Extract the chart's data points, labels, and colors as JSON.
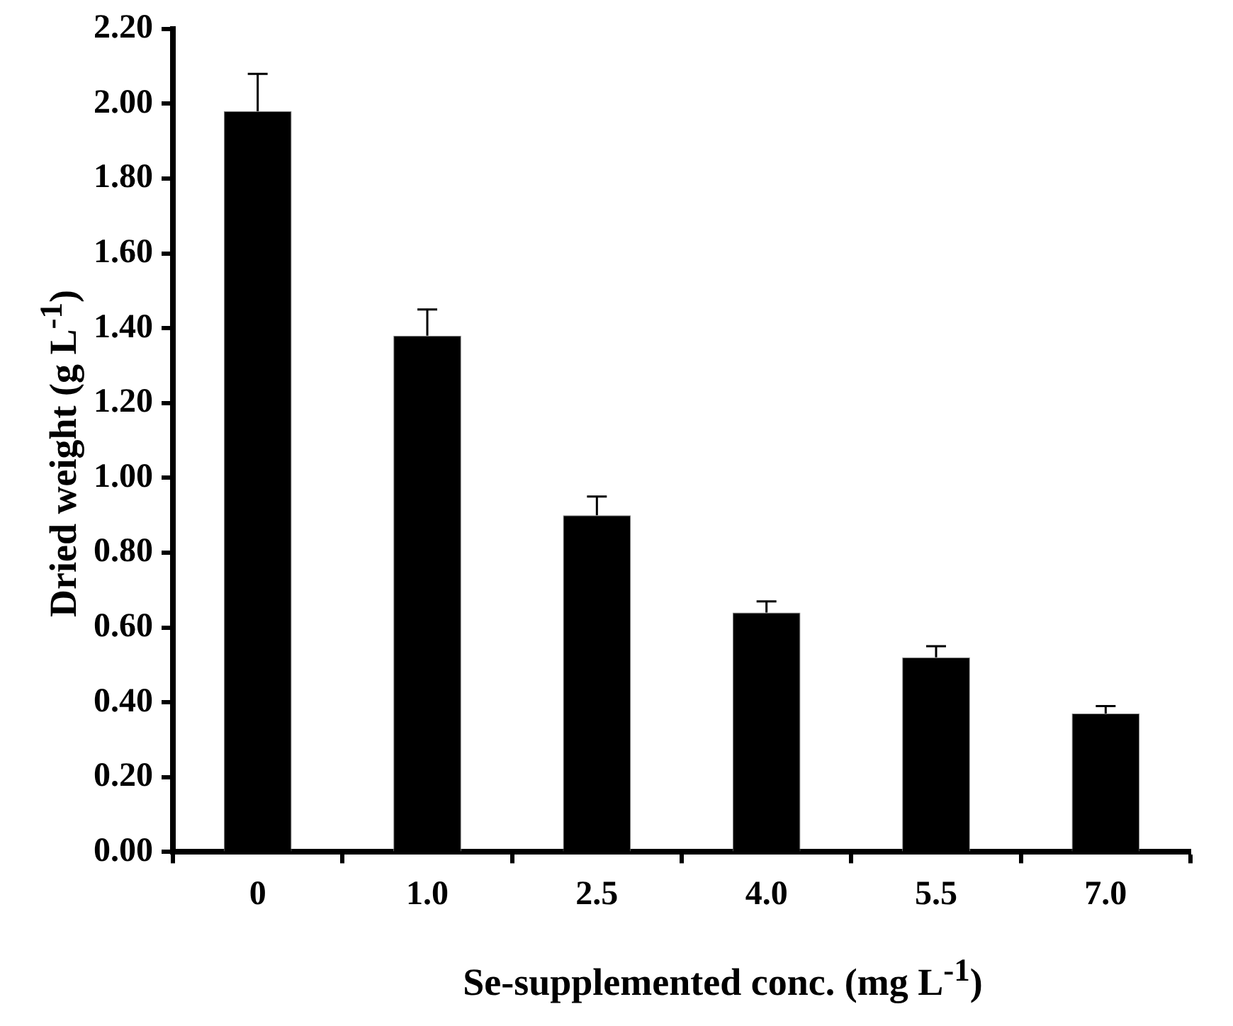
{
  "chart_data": {
    "type": "bar",
    "xlabel": "Se-supplemented conc. (mg L$^{-1}$)",
    "ylabel": "Dried weight (g L$^{-1}$)",
    "categories": [
      "0",
      "1.0",
      "2.5",
      "4.0",
      "5.5",
      "7.0"
    ],
    "values": [
      1.98,
      1.38,
      0.9,
      0.64,
      0.52,
      0.37
    ],
    "errors": [
      [
        1.98,
        2.08
      ],
      [
        1.38,
        1.45
      ],
      [
        0.9,
        0.95
      ],
      [
        0.64,
        0.67
      ],
      [
        0.52,
        0.55
      ],
      [
        0.37,
        0.39
      ]
    ],
    "color": "#000000",
    "ylim": [
      0,
      2.2
    ],
    "yticks": [
      {
        "value": 0,
        "label": "0.00"
      },
      {
        "value": 0.2,
        "label": "0.20"
      },
      {
        "value": 0.4,
        "label": "0.40"
      },
      {
        "value": 0.6,
        "label": "0.60"
      },
      {
        "value": 0.8,
        "label": "0.80"
      },
      {
        "value": 1,
        "label": "1.00"
      },
      {
        "value": 1.2,
        "label": "1.20"
      },
      {
        "value": 1.4,
        "label": "1.40"
      },
      {
        "value": 1.6,
        "label": "1.60"
      },
      {
        "value": 1.8,
        "label": "1.80"
      },
      {
        "value": 2,
        "label": "2.00"
      },
      {
        "value": 2.2,
        "label": "2.20"
      }
    ],
    "grid": false,
    "legend": false
  }
}
